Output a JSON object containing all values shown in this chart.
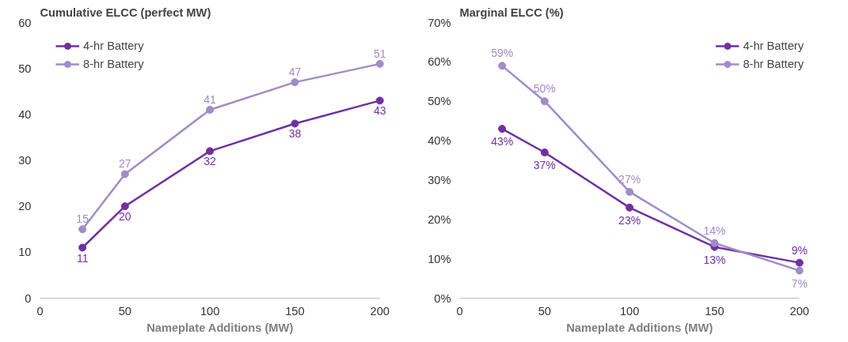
{
  "chart_data": [
    {
      "type": "line",
      "title": "Cumulative ELCC (perfect MW)",
      "xlabel": "Nameplate Additions (MW)",
      "x": [
        25,
        50,
        100,
        150,
        200
      ],
      "xlim": [
        0,
        200
      ],
      "xticks": [
        0,
        50,
        100,
        150,
        200
      ],
      "ylim": [
        0,
        60
      ],
      "yticks": [
        0,
        10,
        20,
        30,
        40,
        50,
        60
      ],
      "grid": false,
      "legend": "top left",
      "marker": "circle",
      "line_style": "solid",
      "data_labels": true,
      "series": [
        {
          "name": "4-hr Battery",
          "color": "#7030a0",
          "values": [
            11,
            20,
            32,
            38,
            43
          ]
        },
        {
          "name": "8-hr Battery",
          "color": "#a08cc8",
          "values": [
            15,
            27,
            41,
            47,
            51
          ]
        }
      ]
    },
    {
      "type": "line",
      "title": "Marginal ELCC (%)",
      "xlabel": "Nameplate Additions (MW)",
      "x": [
        25,
        50,
        100,
        150,
        200
      ],
      "xlim": [
        0,
        200
      ],
      "xticks": [
        0,
        50,
        100,
        150,
        200
      ],
      "ylim": [
        0,
        70
      ],
      "yticks": [
        {
          "value": 0,
          "label": "0%"
        },
        {
          "value": 10,
          "label": "10%"
        },
        {
          "value": 20,
          "label": "20%"
        },
        {
          "value": 30,
          "label": "30%"
        },
        {
          "value": 40,
          "label": "40%"
        },
        {
          "value": 50,
          "label": "50%"
        },
        {
          "value": 60,
          "label": "60%"
        },
        {
          "value": 70,
          "label": "70%"
        }
      ],
      "grid": false,
      "legend": "top right",
      "marker": "circle",
      "line_style": "solid",
      "series": [
        {
          "name": "4-hr Battery",
          "color": "#7030a0",
          "values": [
            43,
            37,
            23,
            13,
            9
          ],
          "value_labels": [
            "43%",
            "37%",
            "23%",
            "13%",
            "9%"
          ]
        },
        {
          "name": "8-hr Battery",
          "color": "#a08cc8",
          "values": [
            59,
            50,
            27,
            14,
            7
          ],
          "value_labels": [
            "59%",
            "50%",
            "27%",
            "14%",
            "7%"
          ]
        }
      ]
    }
  ]
}
